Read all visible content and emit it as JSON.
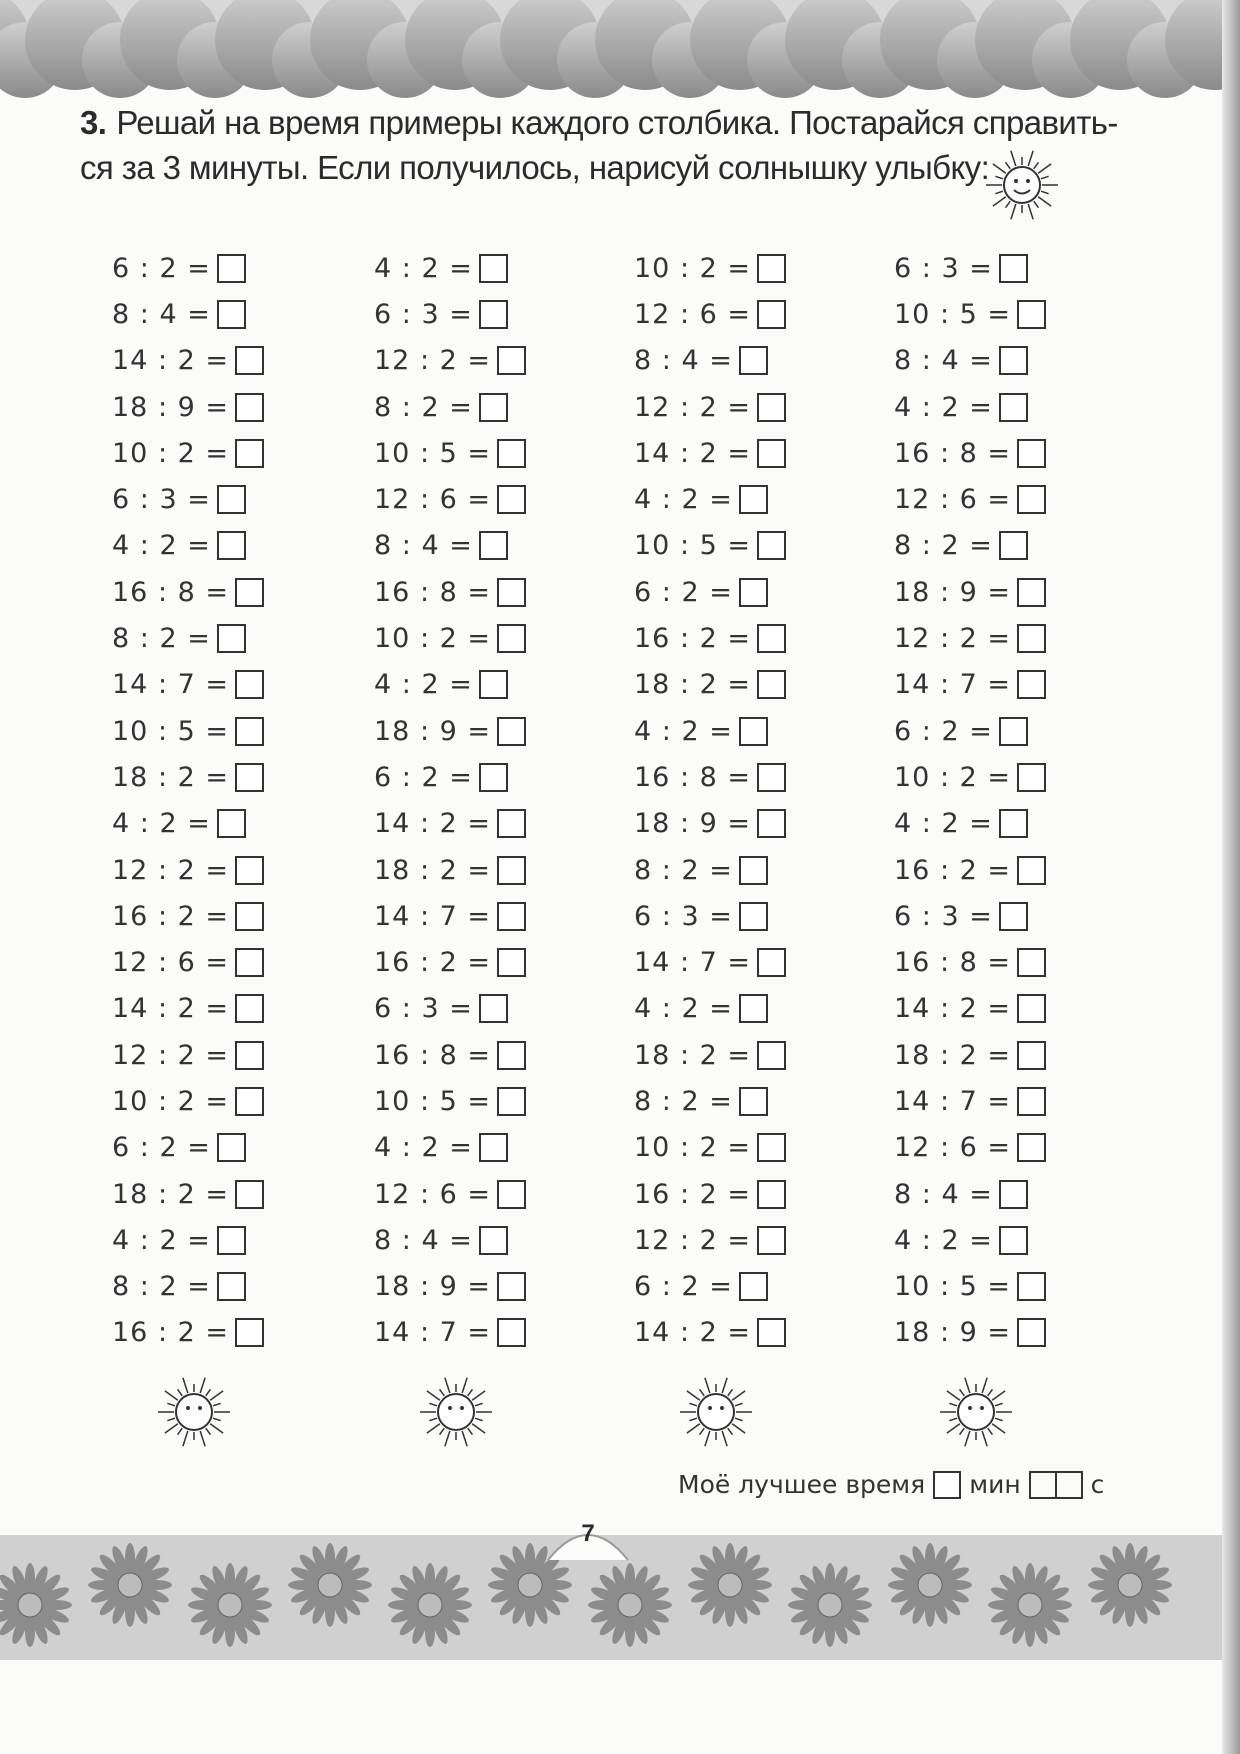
{
  "task": {
    "number": "3.",
    "text": "Решай на время примеры каждого столбика. Постарайся справить- ся за 3 минуты. Если получилось, нарисуй солнышку улыбку:"
  },
  "columns": [
    [
      "6 : 2 =",
      "8 : 4 =",
      "14 : 2 =",
      "18 : 9 =",
      "10 : 2 =",
      "6 : 3 =",
      "4 : 2 =",
      "16 : 8 =",
      "8 : 2 =",
      "14 : 7 =",
      "10 : 5 =",
      "18 : 2 =",
      "4 : 2 =",
      "12 : 2 =",
      "16 : 2 =",
      "12 : 6 =",
      "14 : 2 =",
      "12 : 2 =",
      "10 : 2 =",
      "6 : 2 =",
      "18 : 2 =",
      "4 : 2 =",
      "8 : 2 =",
      "16 : 2 ="
    ],
    [
      "4 : 2 =",
      "6 : 3 =",
      "12 : 2 =",
      "8 : 2 =",
      "10 : 5 =",
      "12 : 6 =",
      "8 : 4 =",
      "16 : 8 =",
      "10 : 2 =",
      "4 : 2 =",
      "18 : 9 =",
      "6 : 2 =",
      "14 : 2 =",
      "18 : 2 =",
      "14 : 7 =",
      "16 : 2 =",
      "6 : 3 =",
      "16 : 8 =",
      "10 : 5 =",
      "4 : 2 =",
      "12 : 6 =",
      "8 : 4 =",
      "18 : 9 =",
      "14 : 7 ="
    ],
    [
      "10 : 2 =",
      "12 : 6 =",
      "8 : 4 =",
      "12 : 2 =",
      "14 : 2 =",
      "4 : 2 =",
      "10 : 5 =",
      "6 : 2 =",
      "16 : 2 =",
      "18 : 2 =",
      "4 : 2 =",
      "16 : 8 =",
      "18 : 9 =",
      "8 : 2 =",
      "6 : 3 =",
      "14 : 7 =",
      "4 : 2 =",
      "18 : 2 =",
      "8 : 2 =",
      "10 : 2 =",
      "16 : 2 =",
      "12 : 2 =",
      "6 : 2 =",
      "14 : 2 ="
    ],
    [
      "6 : 3 =",
      "10 : 5 =",
      "8 : 4 =",
      "4 : 2 =",
      "16 : 8 =",
      "12 : 6 =",
      "8 : 2 =",
      "18 : 9 =",
      "12 : 2 =",
      "14 : 7 =",
      "6 : 2 =",
      "10 : 2 =",
      "4 : 2 =",
      "16 : 2 =",
      "6 : 3 =",
      "16 : 8 =",
      "14 : 2 =",
      "18 : 2 =",
      "14 : 7 =",
      "12 : 6 =",
      "8 : 4 =",
      "4 : 2 =",
      "10 : 5 =",
      "18 : 9 ="
    ]
  ],
  "best_time": {
    "label": "Моё лучшее время",
    "min": "мин",
    "sec": "с"
  },
  "page_number": "7",
  "icons": {
    "sun": "sun-face-icon",
    "flower": "daisy-icon",
    "cloud": "cloud-icon"
  }
}
